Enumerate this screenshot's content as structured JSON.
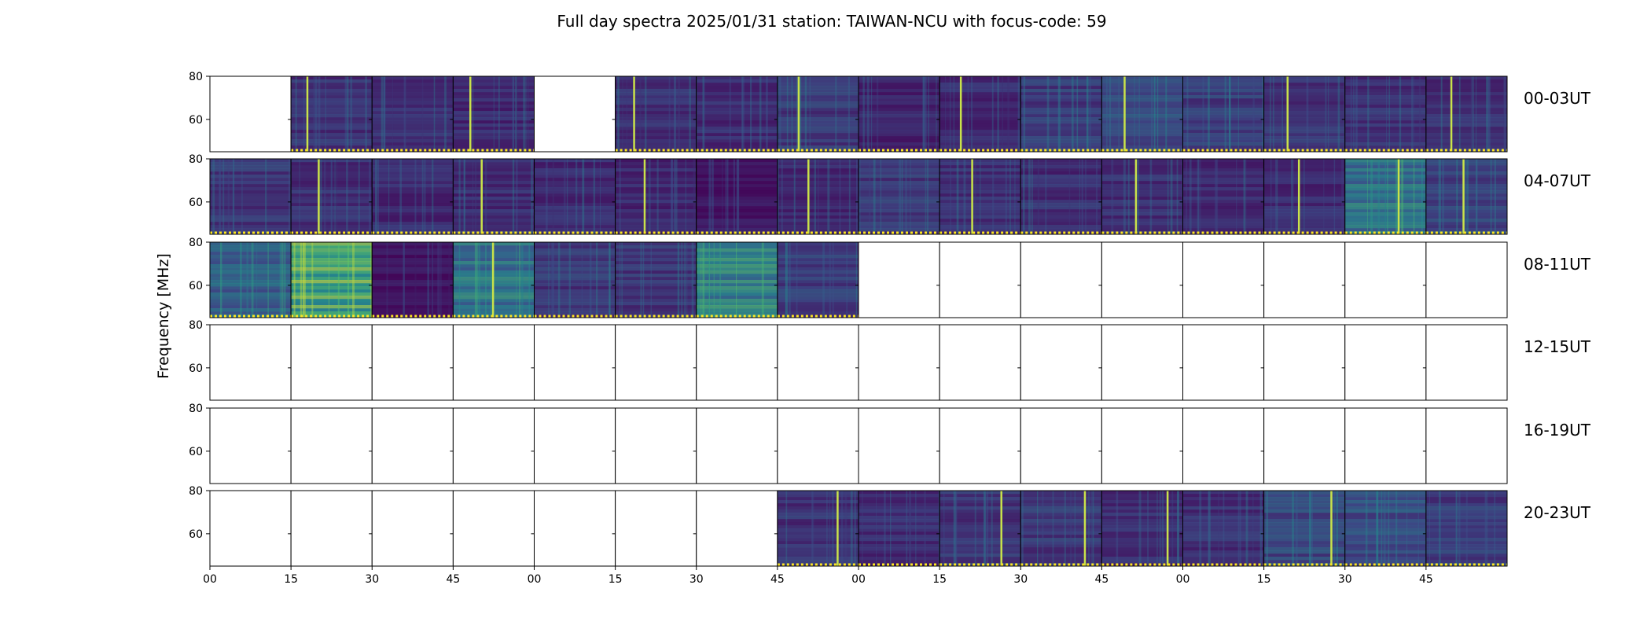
{
  "chart_data": {
    "type": "heatmap",
    "title": "Full day spectra 2025/01/31 station: TAIWAN-NCU with focus-code: 59",
    "ylabel": "Frequency [MHz]",
    "xlabel": "",
    "ylim": [
      45,
      80
    ],
    "y_ticks": [
      60,
      80
    ],
    "x_tick_labels": [
      "00",
      "15",
      "30",
      "45",
      "00",
      "15",
      "30",
      "45",
      "00",
      "15",
      "30",
      "45",
      "00",
      "15",
      "30",
      "45"
    ],
    "colormap": "viridis",
    "colors": [
      "#440154",
      "#3b528b",
      "#21918c",
      "#5ec962",
      "#fde725"
    ],
    "rows": [
      {
        "label": "00-03UT",
        "panels": [
          {
            "has_data": false
          },
          {
            "has_data": true,
            "intensity": 0.18,
            "burst": 0.19
          },
          {
            "has_data": true,
            "intensity": 0.16
          },
          {
            "has_data": true,
            "intensity": 0.15,
            "burst": 0.2
          },
          {
            "has_data": false
          },
          {
            "has_data": true,
            "intensity": 0.16,
            "burst": 0.22
          },
          {
            "has_data": true,
            "intensity": 0.15
          },
          {
            "has_data": true,
            "intensity": 0.2,
            "burst": 0.25
          },
          {
            "has_data": true,
            "intensity": 0.13
          },
          {
            "has_data": true,
            "intensity": 0.15,
            "burst": 0.25
          },
          {
            "has_data": true,
            "intensity": 0.22
          },
          {
            "has_data": true,
            "intensity": 0.28,
            "burst": 0.27
          },
          {
            "has_data": true,
            "intensity": 0.22
          },
          {
            "has_data": true,
            "intensity": 0.18,
            "burst": 0.28
          },
          {
            "has_data": true,
            "intensity": 0.17
          },
          {
            "has_data": true,
            "intensity": 0.18,
            "burst": 0.3
          }
        ]
      },
      {
        "label": "04-07UT",
        "panels": [
          {
            "has_data": true,
            "intensity": 0.2
          },
          {
            "has_data": true,
            "intensity": 0.17,
            "burst": 0.33
          },
          {
            "has_data": true,
            "intensity": 0.15
          },
          {
            "has_data": true,
            "intensity": 0.16,
            "burst": 0.34
          },
          {
            "has_data": true,
            "intensity": 0.15
          },
          {
            "has_data": true,
            "intensity": 0.14,
            "burst": 0.35
          },
          {
            "has_data": true,
            "intensity": 0.08
          },
          {
            "has_data": true,
            "intensity": 0.14,
            "burst": 0.37
          },
          {
            "has_data": true,
            "intensity": 0.2
          },
          {
            "has_data": true,
            "intensity": 0.17,
            "burst": 0.39
          },
          {
            "has_data": true,
            "intensity": 0.16
          },
          {
            "has_data": true,
            "intensity": 0.16,
            "burst": 0.41
          },
          {
            "has_data": true,
            "intensity": 0.16
          },
          {
            "has_data": true,
            "intensity": 0.15,
            "burst": 0.42
          },
          {
            "has_data": true,
            "intensity": 0.45,
            "burst": 0.65
          },
          {
            "has_data": true,
            "intensity": 0.24,
            "burst": 0.45
          }
        ]
      },
      {
        "label": "08-11UT",
        "panels": [
          {
            "has_data": true,
            "intensity": 0.35
          },
          {
            "has_data": true,
            "intensity": 0.7
          },
          {
            "has_data": true,
            "intensity": 0.07
          },
          {
            "has_data": true,
            "intensity": 0.45,
            "burst": 0.48
          },
          {
            "has_data": true,
            "intensity": 0.2
          },
          {
            "has_data": true,
            "intensity": 0.2
          },
          {
            "has_data": true,
            "intensity": 0.5
          },
          {
            "has_data": true,
            "intensity": 0.22
          },
          {
            "has_data": false
          },
          {
            "has_data": false
          },
          {
            "has_data": false
          },
          {
            "has_data": false
          },
          {
            "has_data": false
          },
          {
            "has_data": false
          },
          {
            "has_data": false
          },
          {
            "has_data": false
          }
        ]
      },
      {
        "label": "12-15UT",
        "panels": [
          {
            "has_data": false
          },
          {
            "has_data": false
          },
          {
            "has_data": false
          },
          {
            "has_data": false
          },
          {
            "has_data": false
          },
          {
            "has_data": false
          },
          {
            "has_data": false
          },
          {
            "has_data": false
          },
          {
            "has_data": false
          },
          {
            "has_data": false
          },
          {
            "has_data": false
          },
          {
            "has_data": false
          },
          {
            "has_data": false
          },
          {
            "has_data": false
          },
          {
            "has_data": false
          },
          {
            "has_data": false
          }
        ]
      },
      {
        "label": "16-19UT",
        "panels": [
          {
            "has_data": false
          },
          {
            "has_data": false
          },
          {
            "has_data": false
          },
          {
            "has_data": false
          },
          {
            "has_data": false
          },
          {
            "has_data": false
          },
          {
            "has_data": false
          },
          {
            "has_data": false
          },
          {
            "has_data": false
          },
          {
            "has_data": false
          },
          {
            "has_data": false
          },
          {
            "has_data": false
          },
          {
            "has_data": false
          },
          {
            "has_data": false
          },
          {
            "has_data": false
          },
          {
            "has_data": false
          }
        ]
      },
      {
        "label": "20-23UT",
        "panels": [
          {
            "has_data": false
          },
          {
            "has_data": false
          },
          {
            "has_data": false
          },
          {
            "has_data": false
          },
          {
            "has_data": false
          },
          {
            "has_data": false
          },
          {
            "has_data": false
          },
          {
            "has_data": true,
            "intensity": 0.18,
            "burst": 0.73
          },
          {
            "has_data": true,
            "intensity": 0.15
          },
          {
            "has_data": true,
            "intensity": 0.2,
            "burst": 0.75
          },
          {
            "has_data": true,
            "intensity": 0.2,
            "burst": 0.78
          },
          {
            "has_data": true,
            "intensity": 0.16,
            "burst": 0.8
          },
          {
            "has_data": true,
            "intensity": 0.17
          },
          {
            "has_data": true,
            "intensity": 0.26,
            "burst": 0.82
          },
          {
            "has_data": true,
            "intensity": 0.3
          },
          {
            "has_data": true,
            "intensity": 0.22
          }
        ]
      }
    ]
  }
}
